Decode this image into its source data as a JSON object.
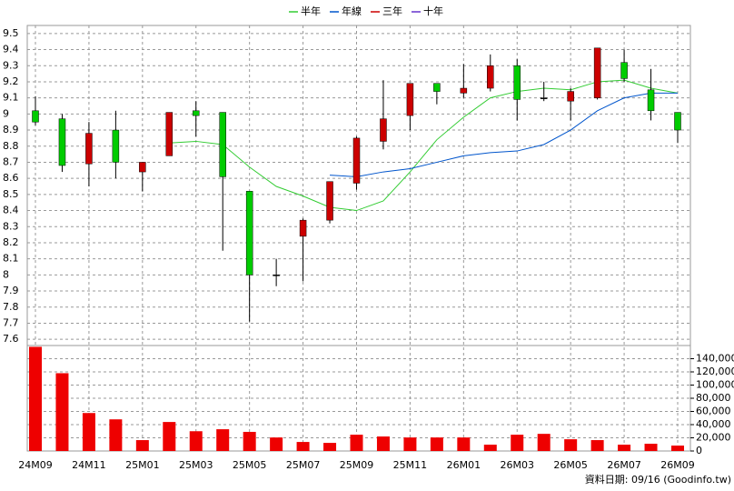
{
  "chart_data": {
    "type": "candlestick",
    "categories": [
      "24M09",
      null,
      "24M11",
      null,
      "25M01",
      null,
      "25M03",
      null,
      "25M05",
      null,
      "25M07",
      null,
      "25M09",
      null,
      "25M11",
      null,
      "26M01",
      null,
      "26M03",
      null,
      "26M05",
      null,
      "26M07",
      null,
      "26M09"
    ],
    "open": [
      9.02,
      8.97,
      8.69,
      8.9,
      8.64,
      8.74,
      9.02,
      9.01,
      8.52,
      8.0,
      8.24,
      8.34,
      8.57,
      8.83,
      8.99,
      9.19,
      9.13,
      9.16,
      9.3,
      9.1,
      9.08,
      9.1,
      9.32,
      9.15,
      9.01
    ],
    "high": [
      9.11,
      9.0,
      8.95,
      9.02,
      8.7,
      9.01,
      9.08,
      9.01,
      8.52,
      8.1,
      8.35,
      8.58,
      8.86,
      9.21,
      9.19,
      9.19,
      9.31,
      9.37,
      9.34,
      9.2,
      9.16,
      9.41,
      9.4,
      9.28,
      9.01
    ],
    "low": [
      8.93,
      8.64,
      8.55,
      8.6,
      8.52,
      8.74,
      8.86,
      8.15,
      7.71,
      7.93,
      7.96,
      8.32,
      8.53,
      8.78,
      8.9,
      9.06,
      9.1,
      9.14,
      8.96,
      9.08,
      8.96,
      9.09,
      9.2,
      8.96,
      8.82
    ],
    "close": [
      8.95,
      8.68,
      8.88,
      8.7,
      8.7,
      9.01,
      8.99,
      8.61,
      8.0,
      8.0,
      8.34,
      8.58,
      8.85,
      8.97,
      9.19,
      9.14,
      9.16,
      9.3,
      9.09,
      9.1,
      9.14,
      9.41,
      9.22,
      9.02,
      8.9
    ],
    "up_color": "#cc0000",
    "down_color": "#00cc00",
    "ylim": [
      7.55,
      9.55
    ],
    "yticks": [
      7.6,
      7.7,
      7.8,
      7.9,
      8,
      8.1,
      8.2,
      8.3,
      8.4,
      8.5,
      8.6,
      8.7,
      8.8,
      8.9,
      9,
      9.1,
      9.2,
      9.3,
      9.4,
      9.5
    ],
    "grid": true,
    "legend": "top",
    "series": [
      {
        "name": "半年",
        "color": "#33cc33",
        "values": [
          null,
          null,
          null,
          null,
          null,
          8.82,
          8.83,
          8.81,
          8.67,
          8.55,
          8.49,
          8.42,
          8.4,
          8.46,
          8.64,
          8.84,
          8.98,
          9.1,
          9.14,
          9.16,
          9.15,
          9.2,
          9.21,
          9.16,
          9.13
        ]
      },
      {
        "name": "年線",
        "color": "#0055cc",
        "values": [
          null,
          null,
          null,
          null,
          null,
          null,
          null,
          null,
          null,
          null,
          null,
          8.62,
          8.61,
          8.64,
          8.66,
          8.7,
          8.74,
          8.76,
          8.77,
          8.81,
          8.9,
          9.02,
          9.1,
          9.13,
          9.13
        ]
      },
      {
        "name": "三年",
        "color": "#cc0000",
        "values": [
          null,
          null,
          null,
          null,
          null,
          null,
          null,
          null,
          null,
          null,
          null,
          null,
          null,
          null,
          null,
          null,
          null,
          null,
          null,
          null,
          null,
          null,
          null,
          null,
          null
        ]
      },
      {
        "name": "十年",
        "color": "#6633cc",
        "values": [
          null,
          null,
          null,
          null,
          null,
          null,
          null,
          null,
          null,
          null,
          null,
          null,
          null,
          null,
          null,
          null,
          null,
          null,
          null,
          null,
          null,
          null,
          null,
          null,
          null
        ]
      }
    ],
    "volume": {
      "color": "#ee0000",
      "values": [
        158000,
        118000,
        57600,
        48000,
        16500,
        44000,
        30000,
        33000,
        29000,
        20500,
        13700,
        12300,
        24700,
        22000,
        20500,
        20500,
        20500,
        9600,
        24700,
        26000,
        17800,
        16500,
        9600,
        11000,
        8200
      ],
      "ylim": [
        0,
        160000
      ],
      "yticks": [
        0,
        {
          "value": 20000,
          "label": "20,000"
        },
        {
          "value": 40000,
          "label": "40,000"
        },
        {
          "value": 60000,
          "label": "60,000"
        },
        {
          "value": 80000,
          "label": "80,000"
        },
        {
          "value": 100000,
          "label": "100,000"
        },
        {
          "value": 120000,
          "label": "120,000"
        },
        {
          "value": 140000,
          "label": "140,000"
        }
      ]
    },
    "note": "資料日期: 09/16 (Goodinfo.tw)"
  }
}
